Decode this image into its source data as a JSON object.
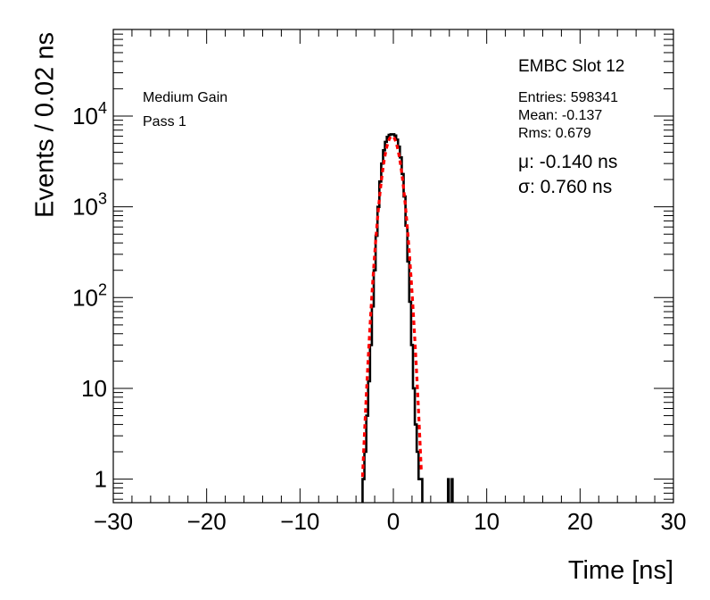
{
  "chart_data": {
    "type": "line",
    "xlabel": "Time [ns]",
    "ylabel": "Events / 0.02 ns",
    "xlim": [
      -30,
      30
    ],
    "ylim": [
      0.55,
      90000
    ],
    "yscale": "log",
    "x_ticks": [
      -30,
      -20,
      -10,
      0,
      10,
      20,
      30
    ],
    "x_tick_labels": [
      "−30",
      "−20",
      "−10",
      "0",
      "10",
      "20",
      "30"
    ],
    "y_ticks": [
      1,
      10,
      100,
      1000,
      10000
    ],
    "y_tick_labels": [
      {
        "base": "1",
        "exp": ""
      },
      {
        "base": "10",
        "exp": ""
      },
      {
        "base": "10",
        "exp": "2"
      },
      {
        "base": "10",
        "exp": "3"
      },
      {
        "base": "10",
        "exp": "4"
      }
    ],
    "grid": false,
    "annotations": {
      "left": [
        "Medium Gain",
        "Pass 1"
      ],
      "title": "EMBC Slot 12",
      "stats": [
        "Entries: 598341",
        "Mean: -0.137",
        "Rms: 0.679"
      ],
      "fit": [
        "μ: -0.140 ns",
        "σ: 0.760 ns"
      ]
    },
    "series": [
      {
        "kind": "histogram",
        "color": "#000000",
        "x": [
          -3.2,
          -3.0,
          -2.8,
          -2.6,
          -2.4,
          -2.2,
          -2.0,
          -1.8,
          -1.6,
          -1.4,
          -1.2,
          -1.0,
          -0.8,
          -0.6,
          -0.4,
          -0.2,
          0.0,
          0.2,
          0.4,
          0.6,
          0.8,
          1.0,
          1.2,
          1.4,
          1.6,
          1.8,
          2.0,
          2.2,
          2.4,
          2.6,
          2.8,
          3.0
        ],
        "y": [
          1,
          2,
          5,
          12,
          30,
          80,
          200,
          480,
          1000,
          1900,
          3000,
          4200,
          5200,
          5900,
          6200,
          6300,
          6300,
          6100,
          5500,
          4600,
          3500,
          2300,
          1300,
          620,
          250,
          90,
          30,
          10,
          4,
          2,
          1,
          1
        ]
      },
      {
        "kind": "histogram-spikes",
        "color": "#000000",
        "x": [
          5.9,
          6.3
        ],
        "y": [
          1,
          1
        ]
      },
      {
        "kind": "gaussian-fit",
        "color": "#ff0000",
        "mean": -0.14,
        "sigma": 0.76,
        "amplitude": 6000,
        "x_range": [
          -3.3,
          3.0
        ]
      }
    ]
  }
}
